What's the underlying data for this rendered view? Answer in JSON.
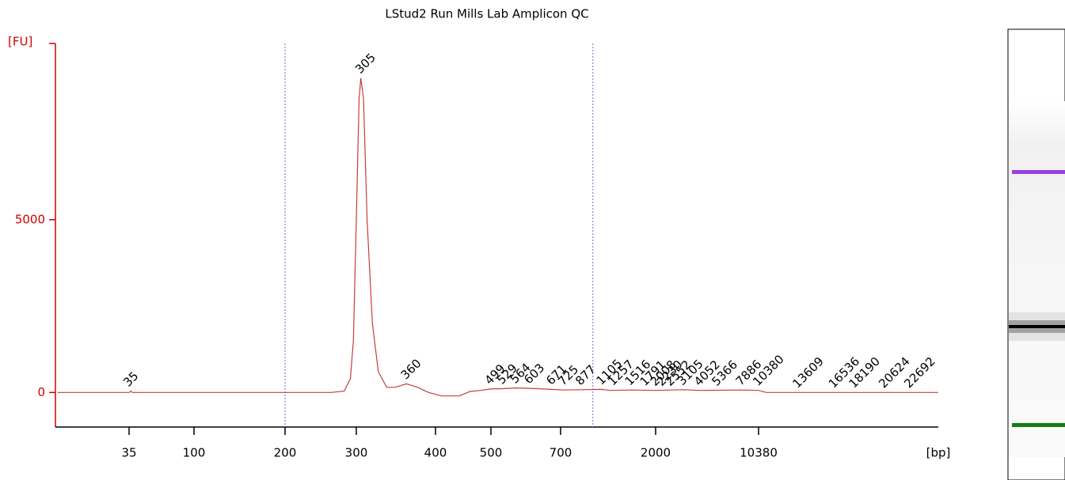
{
  "chart_data": {
    "type": "line",
    "title": "LStud2 Run Mills Lab Amplicon QC",
    "y_label": "[FU]",
    "x_label": "[bp]",
    "ylim": [
      -1000,
      10100
    ],
    "yticks": [
      0,
      5000
    ],
    "xticks": [
      35,
      100,
      200,
      300,
      400,
      500,
      700,
      2000,
      10380
    ],
    "region_bounds": [
      200,
      1000
    ],
    "series": [
      {
        "color": "#c83c3c",
        "x": [
          11,
          35,
          36,
          37,
          200,
          260,
          280,
          290,
          295,
          300,
          303,
          305,
          308,
          312,
          318,
          325,
          335,
          345,
          360,
          375,
          390,
          410,
          440,
          460,
          480,
          499,
          530,
          564,
          603,
          671,
          725,
          877,
          1105,
          1200,
          1516,
          2008,
          3105,
          4052,
          7886,
          10380,
          11000,
          25000
        ],
        "values": [
          0,
          0,
          40,
          0,
          0,
          0,
          40,
          400,
          1500,
          5000,
          8500,
          9100,
          8500,
          5000,
          2000,
          600,
          150,
          150,
          250,
          150,
          0,
          -100,
          -100,
          30,
          60,
          100,
          110,
          130,
          120,
          90,
          70,
          80,
          90,
          60,
          70,
          60,
          80,
          60,
          70,
          60,
          0,
          0
        ]
      }
    ],
    "peaks": {
      "x": [
        35,
        305,
        360,
        499,
        529,
        564,
        603,
        671,
        725,
        877,
        1105,
        1257,
        1516,
        1791,
        2008,
        2230,
        2552,
        3105,
        4052,
        5366,
        7886,
        10380,
        13609,
        16536,
        18190,
        20624,
        22692
      ],
      "values": [
        40,
        9100,
        250,
        100,
        110,
        130,
        120,
        90,
        70,
        80,
        90,
        70,
        70,
        60,
        60,
        60,
        60,
        80,
        60,
        60,
        70,
        60,
        0,
        0,
        0,
        0,
        0
      ],
      "colors": [
        "#1a8a1a",
        "#000000",
        "#000000",
        "#000000",
        "#000000",
        "#000000",
        "#000000",
        "#000000",
        "#000000",
        "#000000",
        "#000000",
        "#000000",
        "#000000",
        "#000000",
        "#000000",
        "#000000",
        "#000000",
        "#000000",
        "#000000",
        "#000000",
        "#000000",
        "#9a40e0",
        "#000000",
        "#000000",
        "#000000",
        "#000000",
        "#000000"
      ]
    }
  }
}
